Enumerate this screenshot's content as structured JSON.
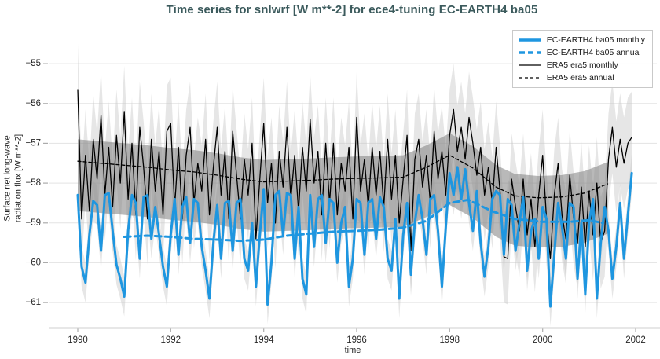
{
  "chart_data": {
    "type": "line",
    "title": "Time series for snlwrf [W m**-2] for ece4-tuning EC-EARTH4 ba05",
    "xlabel": "time",
    "ylabel_lines": [
      "Surface net long-wave",
      "radiation flux [W m**-2]"
    ],
    "xlim": [
      1989.375,
      2002.456
    ],
    "ylim": [
      -61.63,
      -54.11
    ],
    "xticks": [
      1990,
      1992,
      1994,
      1996,
      1998,
      2000,
      2002
    ],
    "yticks": [
      -55,
      -56,
      -57,
      -58,
      -59,
      -60,
      -61
    ],
    "grid": true,
    "legend_position": "upper right",
    "series": [
      {
        "name": "EC-EARTH4 ba05 monthly",
        "color": "#1e96e0",
        "width": 3,
        "dash": "",
        "x_start": 1990.0,
        "x_step": 0.0833333,
        "values": [
          -58.3,
          -60.1,
          -60.5,
          -59.3,
          -58.45,
          -58.55,
          -59.7,
          -58.3,
          -58.25,
          -59.2,
          -60.05,
          -60.4,
          -60.85,
          -59.2,
          -58.3,
          -58.5,
          -59.9,
          -58.35,
          -58.3,
          -59.4,
          -58.6,
          -59.3,
          -60.1,
          -60.6,
          -59.3,
          -58.4,
          -59.8,
          -58.6,
          -58.35,
          -59.5,
          -58.4,
          -58.5,
          -59.6,
          -60.2,
          -60.9,
          -59.5,
          -58.55,
          -59.9,
          -58.5,
          -58.45,
          -59.7,
          -58.5,
          -58.4,
          -59.9,
          -60.2,
          -59.0,
          -60.6,
          -59.3,
          -58.15,
          -61.05,
          -60.0,
          -58.3,
          -58.2,
          -59.3,
          -58.25,
          -58.3,
          -59.9,
          -58.6,
          -60.4,
          -60.8,
          -58.3,
          -59.6,
          -58.4,
          -58.3,
          -59.5,
          -58.4,
          -58.5,
          -60.0,
          -59.0,
          -58.6,
          -60.6,
          -59.9,
          -58.4,
          -58.5,
          -59.8,
          -58.5,
          -58.4,
          -59.4,
          -58.35,
          -58.6,
          -59.9,
          -60.2,
          -58.9,
          -60.9,
          -59.3,
          -58.5,
          -60.3,
          -59.0,
          -58.3,
          -58.9,
          -59.8,
          -58.4,
          -58.3,
          -59.2,
          -60.6,
          -59.1,
          -57.75,
          -58.3,
          -57.6,
          -58.4,
          -57.65,
          -58.5,
          -59.2,
          -58.2,
          -59.5,
          -60.35,
          -59.6,
          -58.4,
          -58.2,
          -58.3,
          -59.8,
          -58.4,
          -58.55,
          -59.7,
          -59.0,
          -58.35,
          -60.2,
          -59.2,
          -58.9,
          -59.9,
          -58.6,
          -58.9,
          -61.1,
          -59.8,
          -58.5,
          -59.1,
          -59.9,
          -58.5,
          -58.6,
          -60.4,
          -59.0,
          -60.8,
          -59.0,
          -58.4,
          -60.9,
          -59.5,
          -58.6,
          -59.2,
          -60.4,
          -59.6,
          -58.5,
          -59.9,
          -58.8,
          -57.75
        ]
      },
      {
        "name": "EC-EARTH4 ba05 annual",
        "color": "#1e96e0",
        "width": 3,
        "dash": "8,5",
        "points": [
          [
            1991.0,
            -59.35
          ],
          [
            1991.5,
            -59.32
          ],
          [
            1992.0,
            -59.35
          ],
          [
            1992.5,
            -59.4
          ],
          [
            1993.0,
            -59.42
          ],
          [
            1993.5,
            -59.45
          ],
          [
            1994.0,
            -59.42
          ],
          [
            1994.5,
            -59.32
          ],
          [
            1995.0,
            -59.27
          ],
          [
            1995.5,
            -59.22
          ],
          [
            1996.0,
            -59.2
          ],
          [
            1996.5,
            -59.17
          ],
          [
            1997.0,
            -59.12
          ],
          [
            1997.5,
            -58.95
          ],
          [
            1998.0,
            -58.5
          ],
          [
            1998.4,
            -58.42
          ],
          [
            1998.9,
            -58.7
          ],
          [
            1999.4,
            -58.9
          ],
          [
            2000.0,
            -58.97
          ],
          [
            2000.6,
            -58.97
          ],
          [
            2001.0,
            -58.93
          ],
          [
            2001.3,
            -59.0
          ]
        ]
      },
      {
        "name": "ERA5 era5 monthly",
        "color": "#000000",
        "width": 1.3,
        "dash": "",
        "x_start": 1990.0,
        "x_step": 0.0833333,
        "values": [
          -55.65,
          -58.9,
          -57.3,
          -58.7,
          -56.9,
          -57.9,
          -56.3,
          -58.3,
          -57.1,
          -58.6,
          -56.8,
          -58.0,
          -56.2,
          -58.4,
          -57.0,
          -58.8,
          -56.6,
          -57.6,
          -58.9,
          -56.9,
          -58.2,
          -57.2,
          -58.8,
          -56.7,
          -56.5,
          -58.6,
          -57.1,
          -58.9,
          -57.3,
          -56.6,
          -58.5,
          -57.5,
          -58.2,
          -56.9,
          -58.8,
          -57.6,
          -56.6,
          -58.3,
          -57.2,
          -58.9,
          -56.7,
          -57.8,
          -58.9,
          -57.4,
          -58.3,
          -57.0,
          -59.4,
          -57.9,
          -56.5,
          -58.5,
          -57.5,
          -59.0,
          -57.2,
          -58.1,
          -56.6,
          -58.4,
          -57.3,
          -58.7,
          -57.1,
          -58.2,
          -56.4,
          -58.0,
          -57.2,
          -58.8,
          -57.0,
          -58.5,
          -57.0,
          -58.8,
          -57.5,
          -58.2,
          -57.1,
          -58.9,
          -56.35,
          -58.2,
          -57.4,
          -58.6,
          -57.1,
          -58.3,
          -57.2,
          -58.6,
          -56.9,
          -58.4,
          -57.3,
          -59.0,
          -57.9,
          -56.8,
          -59.7,
          -57.4,
          -56.9,
          -58.1,
          -57.3,
          -58.5,
          -56.7,
          -57.9,
          -57.2,
          -58.3,
          -56.8,
          -56.15,
          -57.2,
          -56.6,
          -57.4,
          -56.35,
          -57.0,
          -57.8,
          -57.1,
          -58.3,
          -57.6,
          -58.5,
          -57.1,
          -58.2,
          -59.85,
          -59.9,
          -57.9,
          -58.6,
          -59.2,
          -57.9,
          -59.3,
          -58.4,
          -59.6,
          -58.3,
          -57.3,
          -58.9,
          -59.9,
          -58.3,
          -57.5,
          -58.8,
          -59.4,
          -57.8,
          -58.9,
          -59.5,
          -58.1,
          -59.6,
          -58.2,
          -59.3,
          -58.0,
          -59.5,
          -59.2,
          -57.4,
          -56.6,
          -57.6,
          -56.9,
          -57.5,
          -57.0,
          -56.85
        ]
      },
      {
        "name": "ERA5 era5 annual",
        "color": "#000000",
        "width": 1.3,
        "dash": "4,3",
        "points": [
          [
            1990.0,
            -57.45
          ],
          [
            1990.5,
            -57.5
          ],
          [
            1991.0,
            -57.55
          ],
          [
            1991.5,
            -57.6
          ],
          [
            1992.0,
            -57.67
          ],
          [
            1992.5,
            -57.72
          ],
          [
            1993.0,
            -57.8
          ],
          [
            1993.5,
            -57.9
          ],
          [
            1994.0,
            -57.97
          ],
          [
            1994.5,
            -57.95
          ],
          [
            1995.0,
            -57.93
          ],
          [
            1995.5,
            -57.9
          ],
          [
            1996.0,
            -57.88
          ],
          [
            1996.5,
            -57.87
          ],
          [
            1997.0,
            -57.85
          ],
          [
            1997.5,
            -57.6
          ],
          [
            1998.0,
            -57.3
          ],
          [
            1998.5,
            -57.62
          ],
          [
            1999.0,
            -58.1
          ],
          [
            1999.4,
            -58.32
          ],
          [
            1999.9,
            -58.37
          ],
          [
            2000.4,
            -58.35
          ],
          [
            2000.9,
            -58.25
          ],
          [
            2001.4,
            -58.02
          ]
        ]
      }
    ],
    "bands": [
      {
        "name": "era5-monthly-spread-band",
        "center": "ERA5 era5 monthly",
        "up": 1.15,
        "down": 1.15,
        "color": "#c8c8c8",
        "opacity": 0.45
      },
      {
        "name": "ec-earth4-monthly-spread-band",
        "center": "EC-EARTH4 ba05 monthly",
        "up": 0.5,
        "down": 0.5,
        "color": "#c8c8c8",
        "opacity": 0.45
      },
      {
        "name": "era5-annual-std-band",
        "center": "ERA5 era5 annual",
        "up": 0.55,
        "down": 1.25,
        "color": "#808080",
        "opacity": 0.55
      }
    ]
  },
  "legend": {
    "items": [
      {
        "label": "EC-EARTH4 ba05 monthly",
        "color": "#1e96e0",
        "width": 3.5,
        "dash": ""
      },
      {
        "label": "EC-EARTH4 ba05 annual",
        "color": "#1e96e0",
        "width": 3.5,
        "dash": "7,4"
      },
      {
        "label": "ERA5 era5 monthly",
        "color": "#000000",
        "width": 1.3,
        "dash": ""
      },
      {
        "label": "ERA5 era5 annual",
        "color": "#000000",
        "width": 1.3,
        "dash": "4,3"
      }
    ]
  },
  "style": {
    "title_color": "#3b5a5c",
    "grid_color": "#e3e3e3",
    "axis_line_color": "#cfcfcf",
    "tick_mark_color": "#ababab",
    "tick_label_color": "#262626"
  }
}
